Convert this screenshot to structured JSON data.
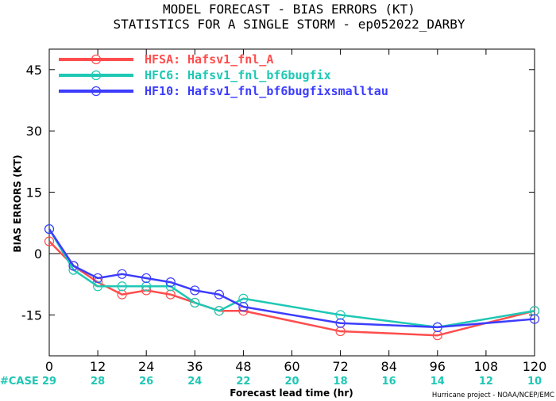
{
  "chart_data": {
    "type": "line",
    "title": "MODEL FORECAST - BIAS ERRORS (KT)",
    "subtitle": "STATISTICS FOR A SINGLE STORM - ep052022_DARBY",
    "xlabel": "Forecast lead time (hr)",
    "ylabel": "BIAS ERRORS (KT)",
    "xlim": [
      0,
      120
    ],
    "ylim": [
      -25,
      50
    ],
    "x_ticks": [
      0,
      12,
      24,
      36,
      48,
      60,
      72,
      84,
      96,
      108,
      120
    ],
    "y_ticks": [
      -15,
      0,
      15,
      30,
      45
    ],
    "series": [
      {
        "name": "HFSA:",
        "label": "Hafsv1_fnl_A",
        "color": "#ff4d4d",
        "points": [
          [
            0,
            3
          ],
          [
            6,
            -3
          ],
          [
            12,
            -7
          ],
          [
            18,
            -10
          ],
          [
            24,
            -9
          ],
          [
            30,
            -10
          ],
          [
            36,
            -12
          ],
          [
            42,
            -14
          ],
          [
            48,
            -14
          ],
          [
            72,
            -19
          ],
          [
            96,
            -20
          ],
          [
            120,
            -14
          ]
        ]
      },
      {
        "name": "HFC6:",
        "label": "Hafsv1_fnl_bf6bugfix",
        "color": "#1ec8b4",
        "points": [
          [
            0,
            6
          ],
          [
            6,
            -4
          ],
          [
            12,
            -8
          ],
          [
            18,
            -8
          ],
          [
            24,
            -8
          ],
          [
            30,
            -8
          ],
          [
            36,
            -12
          ],
          [
            42,
            -14
          ],
          [
            48,
            -11
          ],
          [
            72,
            -15
          ],
          [
            96,
            -18
          ],
          [
            120,
            -14
          ]
        ]
      },
      {
        "name": "HF10:",
        "label": "Hafsv1_fnl_bf6bugfixsmalltau",
        "color": "#3c3cff",
        "points": [
          [
            0,
            6
          ],
          [
            6,
            -3
          ],
          [
            12,
            -6
          ],
          [
            18,
            -5
          ],
          [
            24,
            -6
          ],
          [
            30,
            -7
          ],
          [
            36,
            -9
          ],
          [
            42,
            -10
          ],
          [
            48,
            -13
          ],
          [
            72,
            -17
          ],
          [
            96,
            -18
          ],
          [
            120,
            -16
          ]
        ]
      }
    ],
    "case_label": "#CASE",
    "case_color": "#1ec8b4",
    "cases": [
      {
        "x": 0,
        "n": "29"
      },
      {
        "x": 12,
        "n": "28"
      },
      {
        "x": 24,
        "n": "26"
      },
      {
        "x": 36,
        "n": "24"
      },
      {
        "x": 48,
        "n": "22"
      },
      {
        "x": 60,
        "n": "20"
      },
      {
        "x": 72,
        "n": "18"
      },
      {
        "x": 84,
        "n": "16"
      },
      {
        "x": 96,
        "n": "14"
      },
      {
        "x": 108,
        "n": "12"
      },
      {
        "x": 120,
        "n": "10"
      }
    ],
    "grid": false,
    "legend_position": "top-left"
  },
  "credit": "Hurricane project - NOAA/NCEP/EMC"
}
